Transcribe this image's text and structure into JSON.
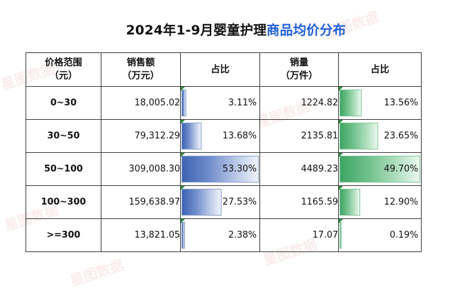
{
  "title": {
    "part1": "2024年1-9月婴童护理",
    "part2": "商品均价分布"
  },
  "headers": {
    "range": "价格范围\n（元）",
    "sales": "销售额\n（万元）",
    "sales_share": "占比",
    "volume": "销量\n（万件）",
    "volume_share": "占比"
  },
  "rows": [
    {
      "range": "0~30",
      "sales": "18,005.02",
      "sales_share": "3.11%",
      "sales_share_value": 3.11,
      "volume": "1224.82",
      "volume_share": "13.56%",
      "volume_share_value": 13.56
    },
    {
      "range": "30~50",
      "sales": "79,312.29",
      "sales_share": "13.68%",
      "sales_share_value": 13.68,
      "volume": "2135.81",
      "volume_share": "23.65%",
      "volume_share_value": 23.65
    },
    {
      "range": "50~100",
      "sales": "309,008.30",
      "sales_share": "53.30%",
      "sales_share_value": 53.3,
      "volume": "4489.23",
      "volume_share": "49.70%",
      "volume_share_value": 49.7
    },
    {
      "range": "100~300",
      "sales": "159,638.97",
      "sales_share": "27.53%",
      "sales_share_value": 27.53,
      "volume": "1165.59",
      "volume_share": "12.90%",
      "volume_share_value": 12.9
    },
    {
      "range": ">=300",
      "sales": "13,821.05",
      "sales_share": "2.38%",
      "sales_share_value": 2.38,
      "volume": "17.07",
      "volume_share": "0.19%",
      "volume_share_value": 0.19
    }
  ],
  "colors": {
    "title_highlight": "#1f5fd6",
    "sales_bar": "#3d64b3",
    "volume_bar": "#3ea564",
    "watermark": "#f6dede"
  },
  "watermark": "星图数据"
}
